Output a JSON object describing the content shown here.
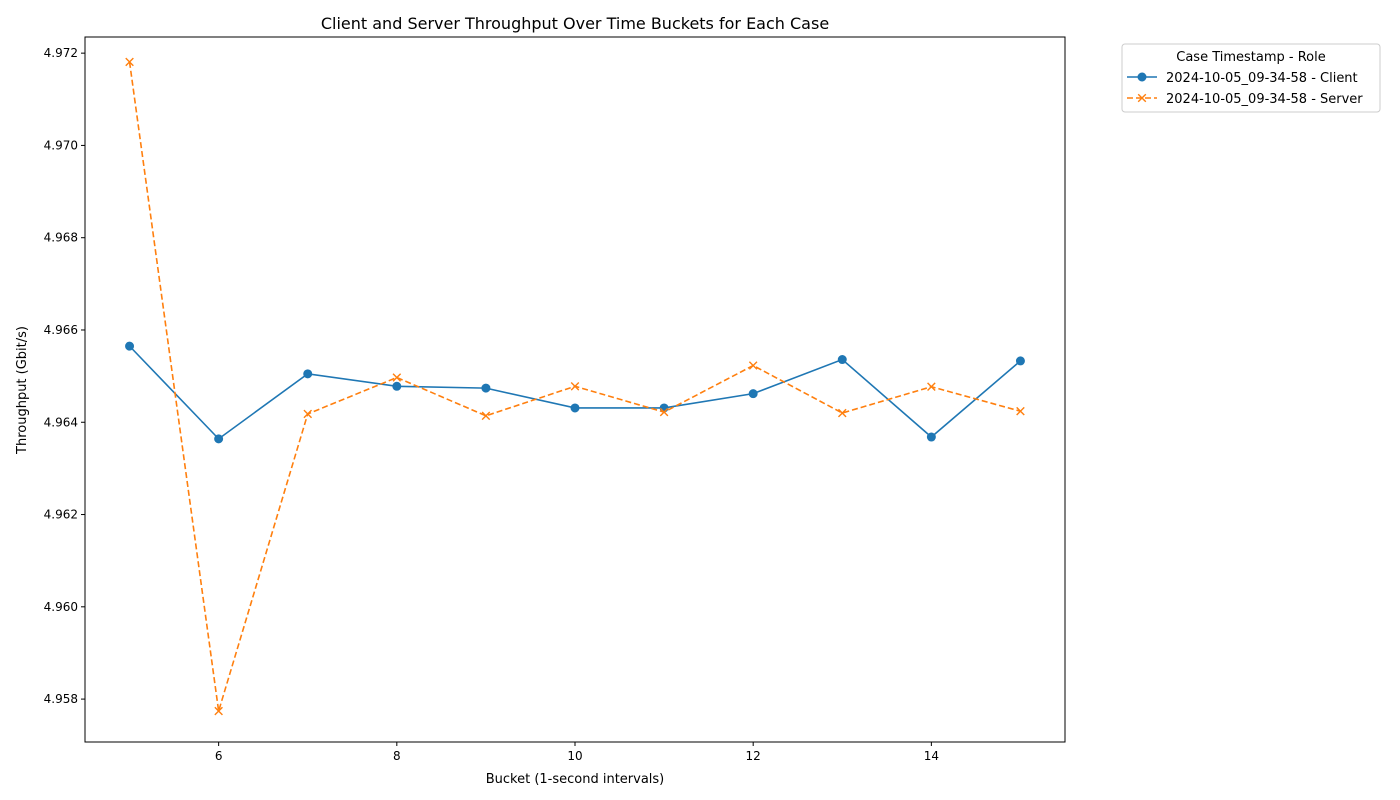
{
  "chart_data": {
    "type": "line",
    "title": "Client and Server Throughput Over Time Buckets for Each Case",
    "xlabel": "Bucket (1-second intervals)",
    "ylabel": "Throughput (Gbit/s)",
    "xlim": [
      4.5,
      15.5
    ],
    "ylim": [
      4.95707,
      4.97235
    ],
    "xticks": [
      6,
      8,
      10,
      12,
      14
    ],
    "xtick_labels": [
      "6",
      "8",
      "10",
      "12",
      "14"
    ],
    "yticks": [
      4.958,
      4.96,
      4.962,
      4.964,
      4.966,
      4.968,
      4.97,
      4.972
    ],
    "ytick_labels": [
      "4.958",
      "4.960",
      "4.962",
      "4.964",
      "4.966",
      "4.968",
      "4.970",
      "4.972"
    ],
    "grid": false,
    "legend": {
      "title": "Case Timestamp - Role",
      "placement": "outside upper-right"
    },
    "x": [
      5,
      6,
      7,
      8,
      9,
      10,
      11,
      12,
      13,
      14,
      15
    ],
    "series": [
      {
        "name": "2024-10-05_09-34-58 - Client",
        "color": "#1f77b4",
        "linestyle": "solid",
        "marker": "circle",
        "values": [
          4.96565,
          4.96364,
          4.96505,
          4.96478,
          4.96474,
          4.96431,
          4.96431,
          4.96462,
          4.96536,
          4.96368,
          4.96533
        ]
      },
      {
        "name": "2024-10-05_09-34-58 - Server",
        "color": "#ff7f0e",
        "linestyle": "dashed",
        "marker": "x",
        "values": [
          4.97181,
          4.95774,
          4.96418,
          4.96497,
          4.96414,
          4.96478,
          4.96422,
          4.96523,
          4.9642,
          4.96477,
          4.96424
        ]
      }
    ]
  }
}
